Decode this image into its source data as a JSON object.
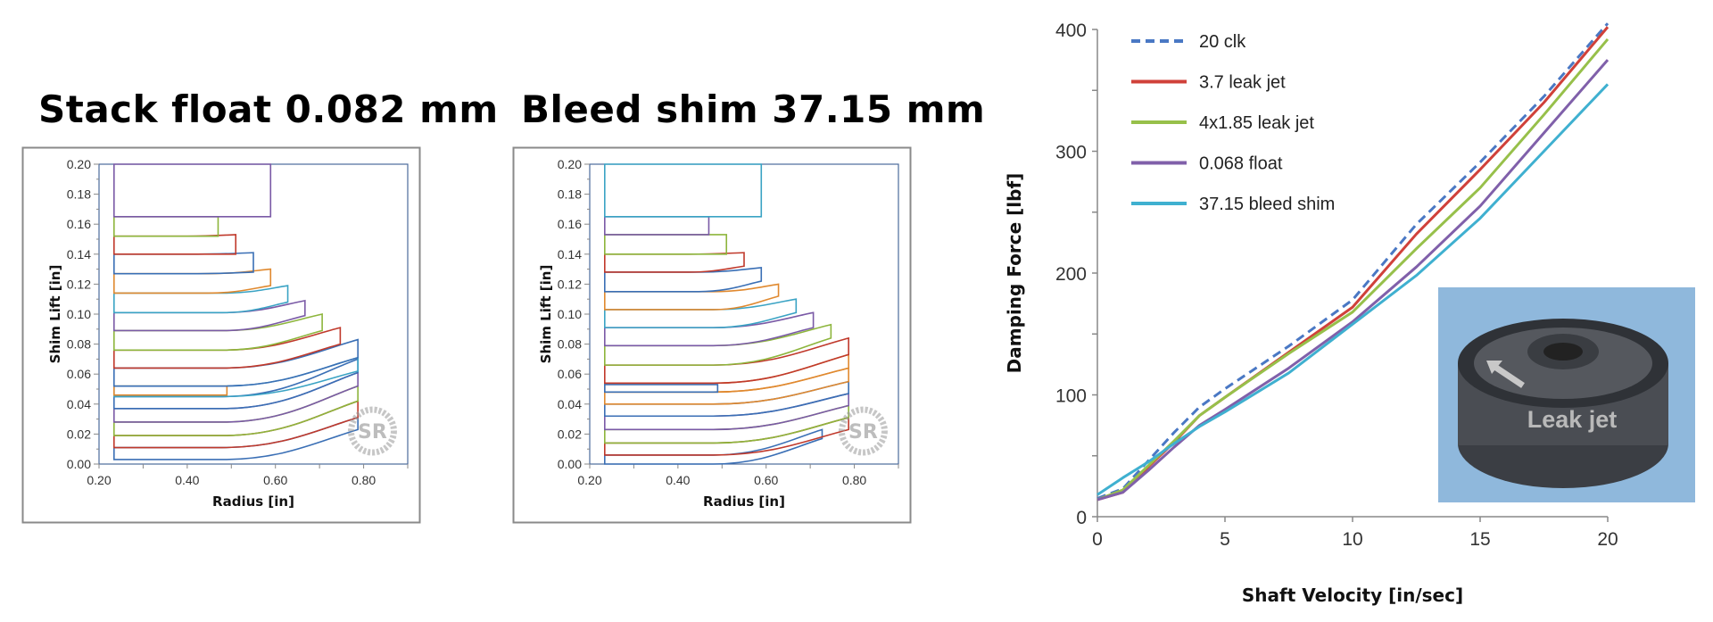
{
  "chart_data": [
    {
      "type": "line",
      "title": "Stack float 0.082 mm",
      "xlabel": "Radius [in]",
      "ylabel": "Shim Lift [in]",
      "xlim": [
        0.2,
        0.9
      ],
      "ylim": [
        0,
        0.2
      ],
      "xticks": [
        "0.20",
        "0.40",
        "0.60",
        "0.80"
      ],
      "yticks": [
        "0.00",
        "0.02",
        "0.04",
        "0.06",
        "0.08",
        "0.10",
        "0.12",
        "0.14",
        "0.16",
        "0.18",
        "0.20"
      ],
      "grid": false,
      "watermark": "www.ShimReStacker.com SR",
      "inner_radius": 0.234,
      "shims": [
        {
          "color": "#3a6fb5",
          "outer_radius": 0.787,
          "inner_lift": [
            0.003,
            0.011
          ],
          "outer_lift": [
            0.023,
            0.031
          ]
        },
        {
          "color": "#c0392b",
          "outer_radius": 0.787,
          "inner_lift": [
            0.011,
            0.019
          ],
          "outer_lift": [
            0.031,
            0.042
          ]
        },
        {
          "color": "#8db53c",
          "outer_radius": 0.787,
          "inner_lift": [
            0.019,
            0.028
          ],
          "outer_lift": [
            0.042,
            0.052
          ]
        },
        {
          "color": "#7a5aa6",
          "outer_radius": 0.787,
          "inner_lift": [
            0.028,
            0.037
          ],
          "outer_lift": [
            0.052,
            0.061
          ]
        },
        {
          "color": "#3a6fb5",
          "outer_radius": 0.787,
          "inner_lift": [
            0.037,
            0.045
          ],
          "outer_lift": [
            0.061,
            0.07
          ]
        },
        {
          "color": "#3aa3c4",
          "outer_radius": 0.787,
          "inner_lift": [
            0.045,
            0.052
          ],
          "outer_lift": [
            0.062,
            0.071
          ]
        },
        {
          "color": "#e0892f",
          "outer_radius": 0.49,
          "inner_lift": [
            0.046,
            0.052
          ],
          "outer_lift": [
            0.046,
            0.052
          ]
        },
        {
          "color": "#3a6fb5",
          "outer_radius": 0.787,
          "inner_lift": [
            0.052,
            0.064
          ],
          "outer_lift": [
            0.071,
            0.083
          ]
        },
        {
          "color": "#c0392b",
          "outer_radius": 0.747,
          "inner_lift": [
            0.064,
            0.076
          ],
          "outer_lift": [
            0.08,
            0.091
          ]
        },
        {
          "color": "#8db53c",
          "outer_radius": 0.706,
          "inner_lift": [
            0.076,
            0.089
          ],
          "outer_lift": [
            0.089,
            0.1
          ]
        },
        {
          "color": "#7a5aa6",
          "outer_radius": 0.667,
          "inner_lift": [
            0.089,
            0.101
          ],
          "outer_lift": [
            0.099,
            0.109
          ]
        },
        {
          "color": "#3aa3c4",
          "outer_radius": 0.628,
          "inner_lift": [
            0.101,
            0.114
          ],
          "outer_lift": [
            0.108,
            0.119
          ]
        },
        {
          "color": "#e0892f",
          "outer_radius": 0.589,
          "inner_lift": [
            0.114,
            0.127
          ],
          "outer_lift": [
            0.119,
            0.13
          ]
        },
        {
          "color": "#3a6fb5",
          "outer_radius": 0.55,
          "inner_lift": [
            0.127,
            0.14
          ],
          "outer_lift": [
            0.128,
            0.141
          ]
        },
        {
          "color": "#c0392b",
          "outer_radius": 0.51,
          "inner_lift": [
            0.14,
            0.152
          ],
          "outer_lift": [
            0.14,
            0.153
          ]
        },
        {
          "color": "#8db53c",
          "outer_radius": 0.47,
          "inner_lift": [
            0.152,
            0.165
          ],
          "outer_lift": [
            0.152,
            0.165
          ]
        },
        {
          "color": "#7a5aa6",
          "outer_radius": 0.589,
          "inner_lift": [
            0.165,
            0.2
          ],
          "outer_lift": [
            0.165,
            0.2
          ]
        }
      ]
    },
    {
      "type": "line",
      "title": "Bleed shim 37.15 mm",
      "xlabel": "Radius [in]",
      "ylabel": "Shim Lift [in]",
      "xlim": [
        0.2,
        0.9
      ],
      "ylim": [
        0,
        0.2
      ],
      "xticks": [
        "0.20",
        "0.40",
        "0.60",
        "0.80"
      ],
      "yticks": [
        "0.00",
        "0.02",
        "0.04",
        "0.06",
        "0.08",
        "0.10",
        "0.12",
        "0.14",
        "0.16",
        "0.18",
        "0.20"
      ],
      "grid": false,
      "watermark": "www.ShimReStacker.com SR",
      "inner_radius": 0.234,
      "shims": [
        {
          "color": "#3a6fb5",
          "outer_radius": 0.727,
          "inner_lift": [
            0.0,
            0.006
          ],
          "outer_lift": [
            0.017,
            0.023
          ]
        },
        {
          "color": "#c0392b",
          "outer_radius": 0.787,
          "inner_lift": [
            0.006,
            0.014
          ],
          "outer_lift": [
            0.023,
            0.031
          ]
        },
        {
          "color": "#8db53c",
          "outer_radius": 0.787,
          "inner_lift": [
            0.014,
            0.023
          ],
          "outer_lift": [
            0.031,
            0.039
          ]
        },
        {
          "color": "#7a5aa6",
          "outer_radius": 0.787,
          "inner_lift": [
            0.023,
            0.032
          ],
          "outer_lift": [
            0.039,
            0.047
          ]
        },
        {
          "color": "#3a6fb5",
          "outer_radius": 0.787,
          "inner_lift": [
            0.032,
            0.04
          ],
          "outer_lift": [
            0.047,
            0.055
          ]
        },
        {
          "color": "#e0892f",
          "outer_radius": 0.787,
          "inner_lift": [
            0.04,
            0.048
          ],
          "outer_lift": [
            0.055,
            0.064
          ]
        },
        {
          "color": "#e0892f",
          "outer_radius": 0.787,
          "inner_lift": [
            0.048,
            0.054
          ],
          "outer_lift": [
            0.064,
            0.073
          ]
        },
        {
          "color": "#3a6fb5",
          "outer_radius": 0.49,
          "inner_lift": [
            0.048,
            0.053
          ],
          "outer_lift": [
            0.048,
            0.053
          ]
        },
        {
          "color": "#c0392b",
          "outer_radius": 0.787,
          "inner_lift": [
            0.054,
            0.066
          ],
          "outer_lift": [
            0.073,
            0.084
          ]
        },
        {
          "color": "#8db53c",
          "outer_radius": 0.747,
          "inner_lift": [
            0.066,
            0.079
          ],
          "outer_lift": [
            0.084,
            0.093
          ]
        },
        {
          "color": "#7a5aa6",
          "outer_radius": 0.707,
          "inner_lift": [
            0.079,
            0.091
          ],
          "outer_lift": [
            0.091,
            0.101
          ]
        },
        {
          "color": "#3aa3c4",
          "outer_radius": 0.668,
          "inner_lift": [
            0.091,
            0.103
          ],
          "outer_lift": [
            0.101,
            0.11
          ]
        },
        {
          "color": "#e0892f",
          "outer_radius": 0.628,
          "inner_lift": [
            0.103,
            0.115
          ],
          "outer_lift": [
            0.112,
            0.12
          ]
        },
        {
          "color": "#3a6fb5",
          "outer_radius": 0.589,
          "inner_lift": [
            0.115,
            0.128
          ],
          "outer_lift": [
            0.122,
            0.131
          ]
        },
        {
          "color": "#c0392b",
          "outer_radius": 0.55,
          "inner_lift": [
            0.128,
            0.14
          ],
          "outer_lift": [
            0.132,
            0.141
          ]
        },
        {
          "color": "#8db53c",
          "outer_radius": 0.51,
          "inner_lift": [
            0.14,
            0.153
          ],
          "outer_lift": [
            0.14,
            0.153
          ]
        },
        {
          "color": "#7a5aa6",
          "outer_radius": 0.47,
          "inner_lift": [
            0.153,
            0.165
          ],
          "outer_lift": [
            0.153,
            0.165
          ]
        },
        {
          "color": "#3aa3c4",
          "outer_radius": 0.589,
          "inner_lift": [
            0.165,
            0.2
          ],
          "outer_lift": [
            0.165,
            0.2
          ]
        }
      ]
    },
    {
      "type": "line",
      "xlabel": "Shaft Velocity [in/sec]",
      "ylabel": "Damping Force [lbf]",
      "xlim": [
        0,
        20
      ],
      "ylim": [
        0,
        400
      ],
      "xticks": [
        "0",
        "5",
        "10",
        "15",
        "20"
      ],
      "yticks": [
        "0",
        "100",
        "200",
        "300",
        "400"
      ],
      "grid": false,
      "legend_position": "top-left",
      "x": [
        0,
        1,
        2,
        3,
        4,
        5,
        7.5,
        10,
        12.5,
        15,
        17.5,
        20
      ],
      "series": [
        {
          "name": "20 clk",
          "color": "#4a78c4",
          "dashed": true,
          "values": [
            15,
            23,
            46,
            69,
            90,
            105,
            140,
            178,
            240,
            291,
            345,
            405
          ]
        },
        {
          "name": "3.7 leak jet",
          "color": "#d0413a",
          "dashed": false,
          "values": [
            14,
            20,
            41,
            61,
            83,
            98,
            135,
            172,
            232,
            285,
            340,
            402
          ]
        },
        {
          "name": "4x1.85 leak jet",
          "color": "#97c04a",
          "dashed": false,
          "values": [
            14,
            22,
            42,
            62,
            83,
            98,
            134,
            168,
            220,
            270,
            330,
            392
          ]
        },
        {
          "name": "0.068 float",
          "color": "#8060aa",
          "dashed": false,
          "values": [
            14,
            20,
            38,
            57,
            75,
            88,
            122,
            160,
            205,
            255,
            315,
            375
          ]
        },
        {
          "name": "37.15 bleed shim",
          "color": "#3fb0d0",
          "dashed": false,
          "values": [
            18,
            32,
            45,
            60,
            74,
            86,
            118,
            158,
            198,
            245,
            300,
            355
          ]
        }
      ],
      "inset_photo": {
        "label": "Leak jet",
        "background": "#8fb8dc"
      }
    }
  ]
}
